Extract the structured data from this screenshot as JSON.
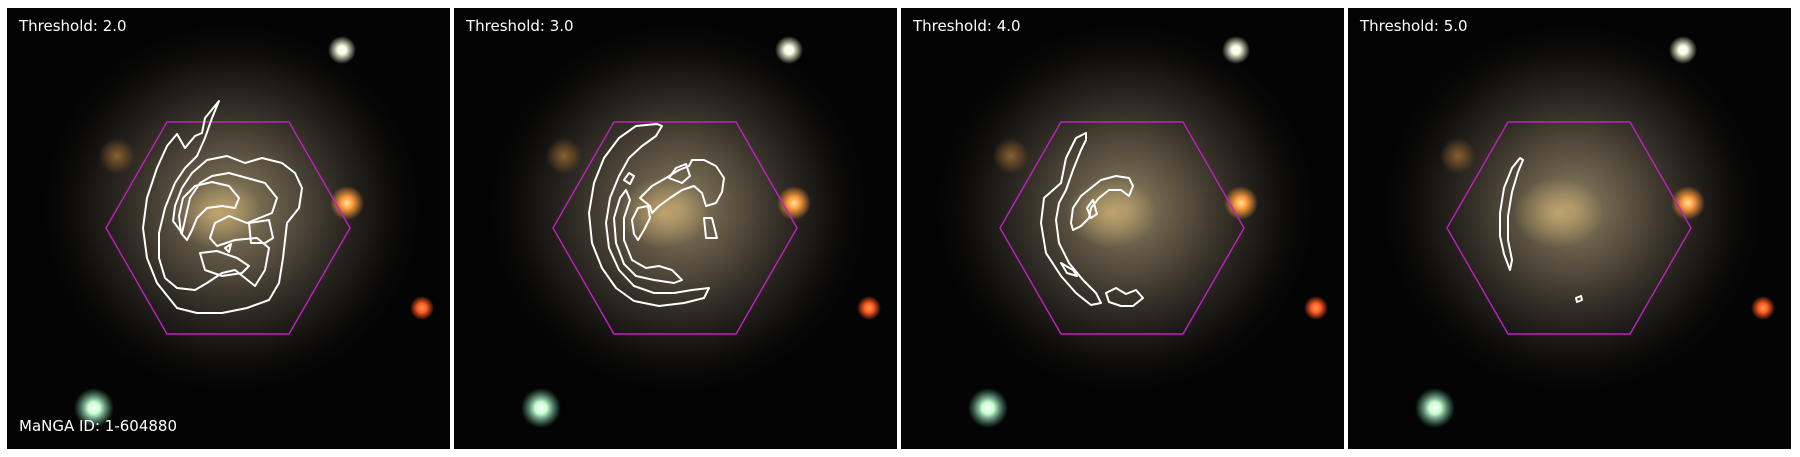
{
  "panels": [
    {
      "threshold_label": "Threshold: 2.0"
    },
    {
      "threshold_label": "Threshold: 3.0"
    },
    {
      "threshold_label": "Threshold: 4.0"
    },
    {
      "threshold_label": "Threshold: 5.0"
    }
  ],
  "manga_id_label": "MaNGA ID: 1-604880",
  "colors": {
    "background": "#000000",
    "hexagon": "#c020c0",
    "contour": "#ffffff",
    "label_text": "#ffffff",
    "galaxy_core": "#b8a070",
    "star_orange": "#ff9a3c",
    "star_red": "#ff5a20",
    "star_bright": "#e8ffe8"
  },
  "icons": [
    "galaxy-image",
    "ifu-hexagon-outline",
    "spiral-arm-contour"
  ]
}
